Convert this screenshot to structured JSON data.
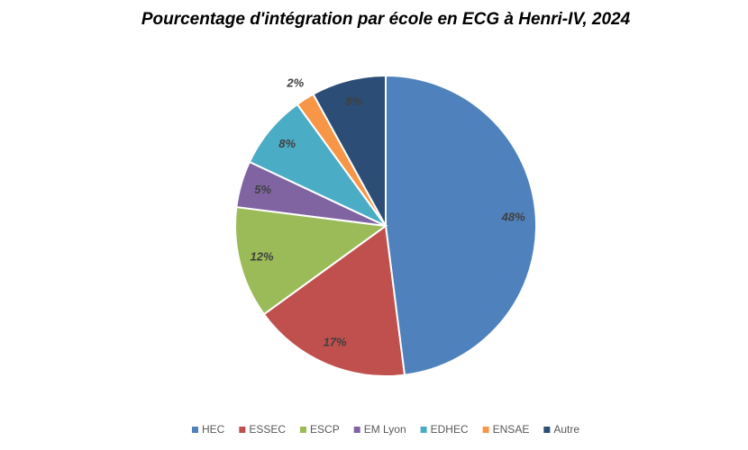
{
  "chart_data": {
    "type": "pie",
    "title": "Pourcentage d'intégration par école en ECG à Henri-IV, 2024",
    "categories": [
      "HEC",
      "ESSEC",
      "ESCP",
      "EM Lyon",
      "EDHEC",
      "ENSAE",
      "Autre"
    ],
    "values": [
      48,
      17,
      12,
      5,
      8,
      2,
      8
    ],
    "value_labels": [
      "48%",
      "17%",
      "12%",
      "5%",
      "8%",
      "2%",
      "8%"
    ],
    "colors": [
      "#4f81bd",
      "#c0504d",
      "#9bbb59",
      "#8064a2",
      "#4bacc6",
      "#f79646",
      "#2c4d75"
    ],
    "legend": "bottom"
  }
}
